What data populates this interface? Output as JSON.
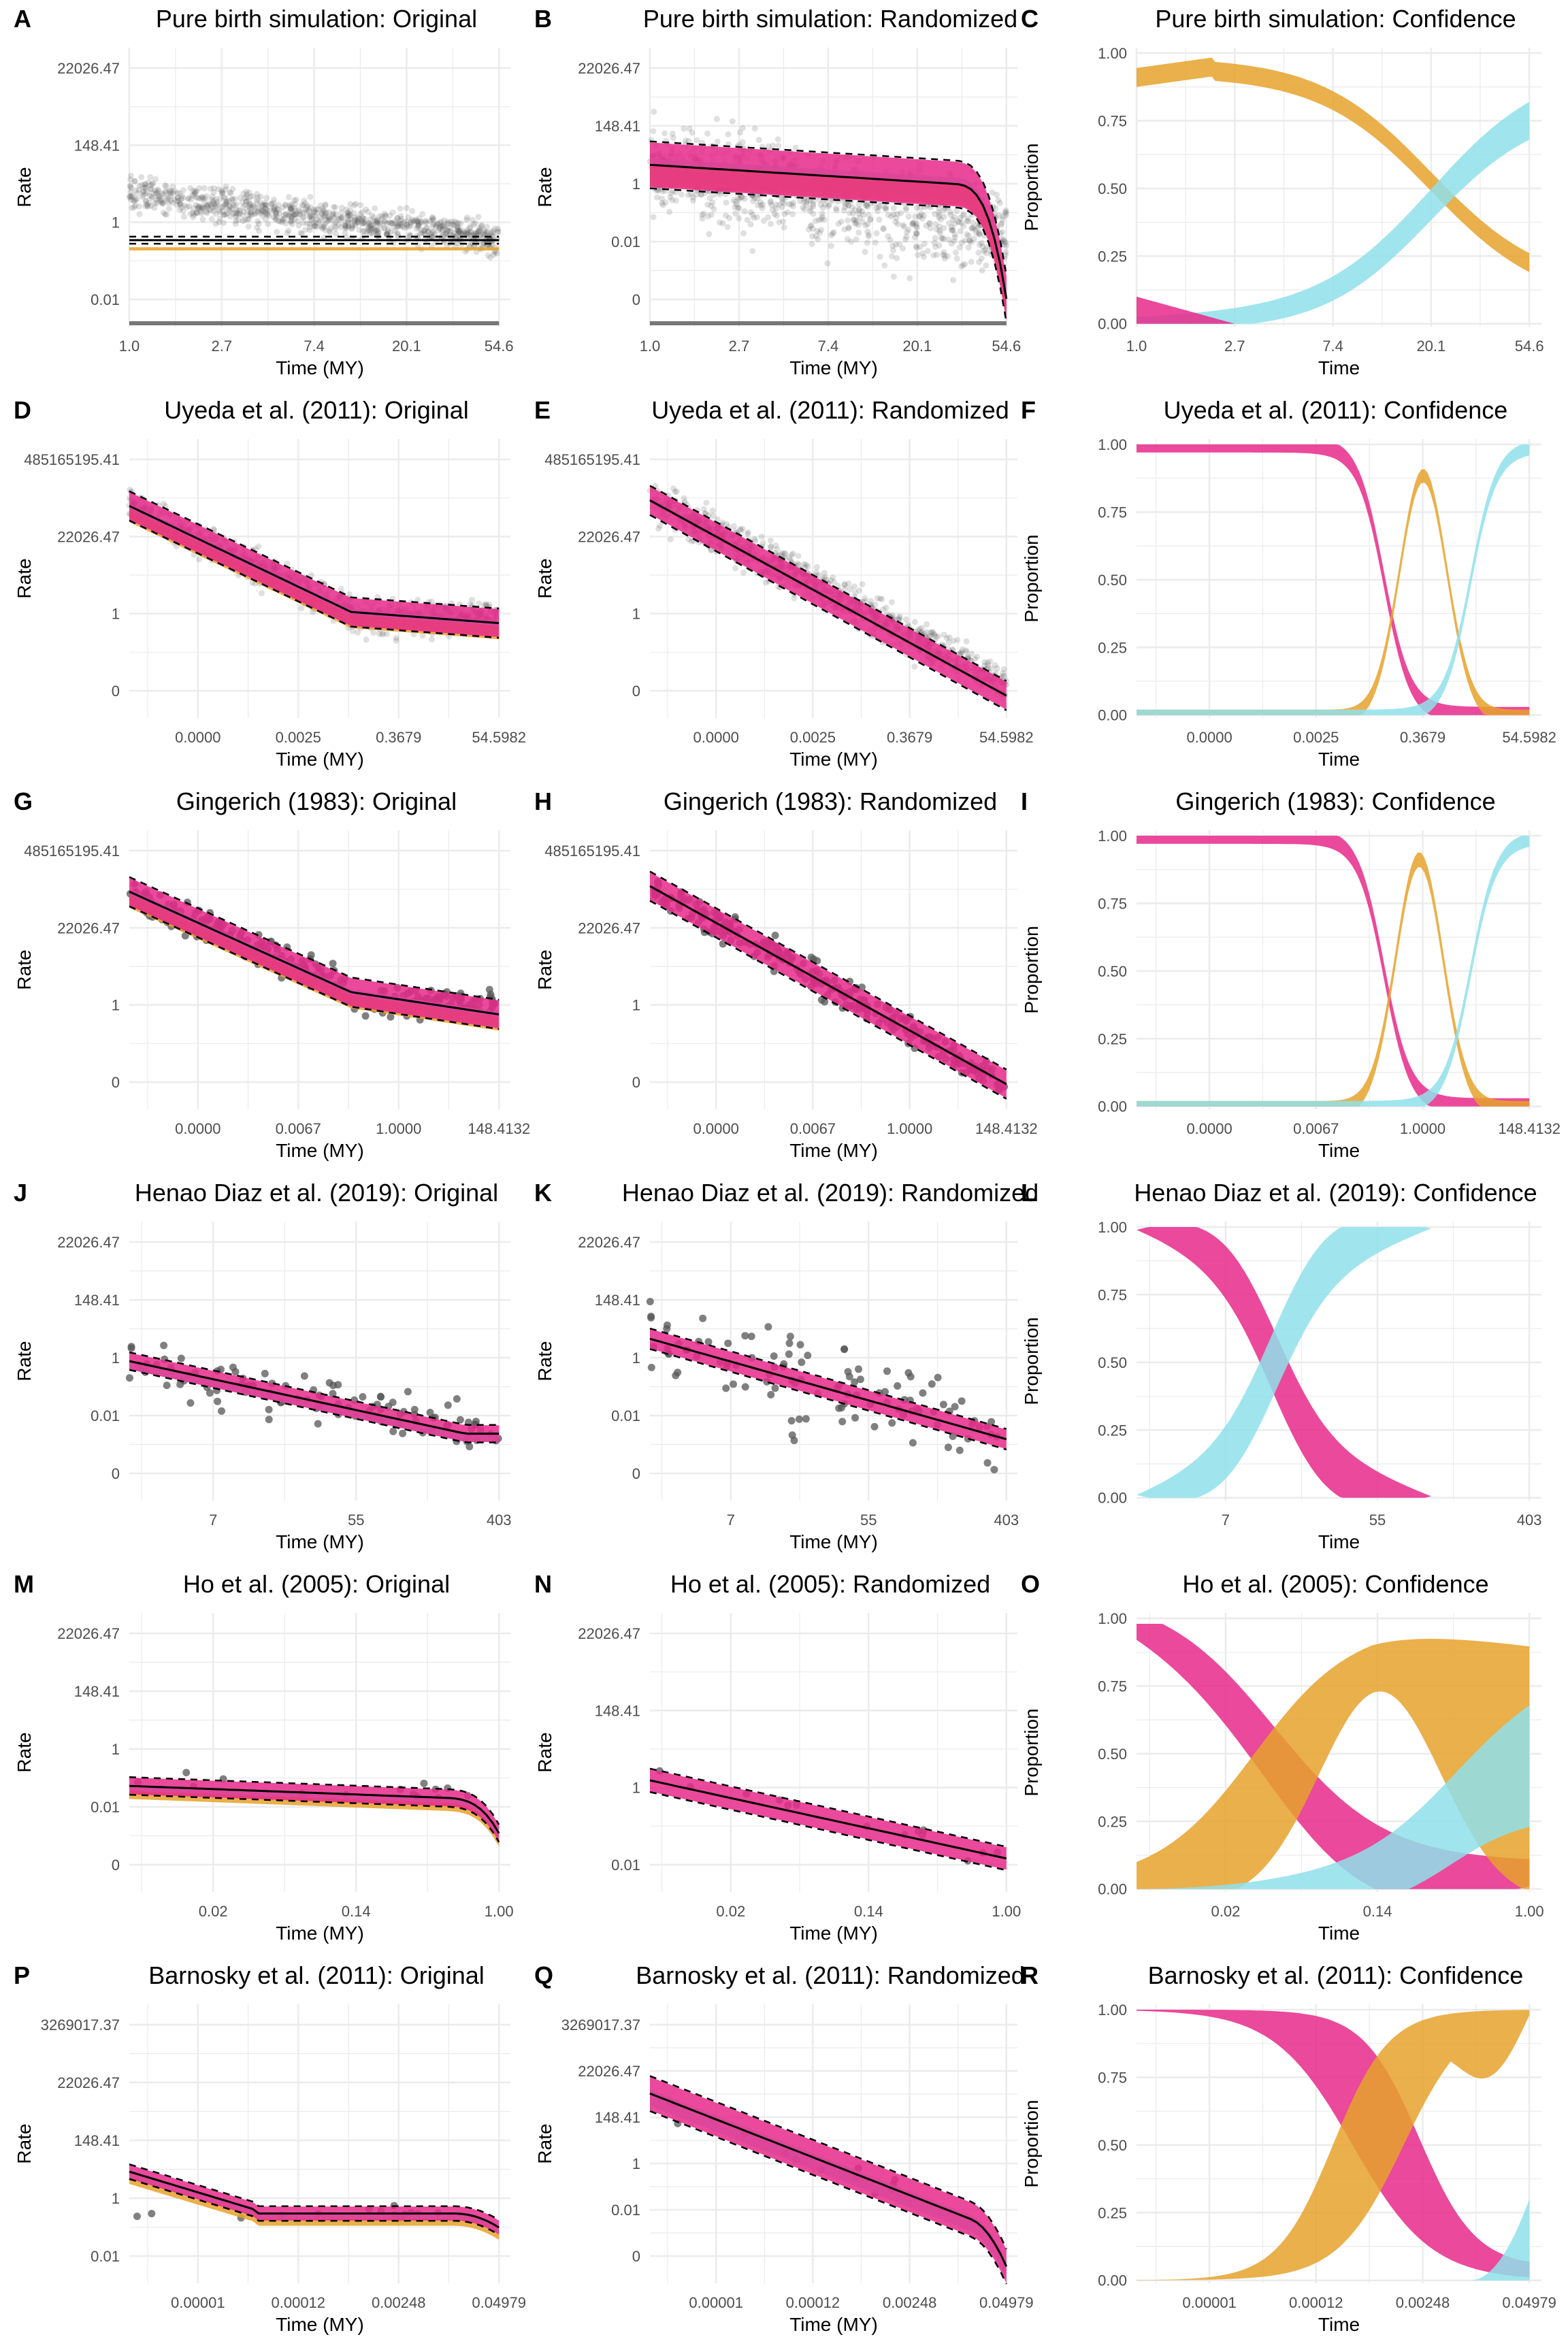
{
  "colors": {
    "pink": "#e7298a",
    "orange": "#e6a22b",
    "cyan": "#8fe0ea",
    "grid": "#ebebeb",
    "points": "#555555",
    "line": "#000000"
  },
  "chart_data": [
    {
      "letter": "A",
      "type": "scatter",
      "title": "Pure birth simulation: Original",
      "xlabel": "Time (MY)",
      "ylabel": "Rate",
      "xticks": [
        "1.0",
        "2.7",
        "7.4",
        "20.1",
        "54.6"
      ],
      "yticks": [
        "22026.47",
        "148.41",
        "1",
        "0.01"
      ],
      "points": "dense",
      "bands": [
        "orange"
      ],
      "rug": true
    },
    {
      "letter": "B",
      "type": "scatter",
      "title": "Pure birth simulation: Randomized",
      "xlabel": "Time (MY)",
      "ylabel": "Rate",
      "xticks": [
        "1.0",
        "2.7",
        "7.4",
        "20.1",
        "54.6"
      ],
      "yticks": [
        "22026.47",
        "148.41",
        "1",
        "0.01",
        "0"
      ],
      "points": "dense",
      "bands": [
        "pink",
        "orange",
        "cyan"
      ],
      "rug": true
    },
    {
      "letter": "C",
      "type": "area",
      "title": "Pure birth simulation: Confidence",
      "xlabel": "Time",
      "ylabel": "Proportion",
      "xticks": [
        "1.0",
        "2.7",
        "7.4",
        "20.1",
        "54.6"
      ],
      "yticks": [
        "1.00",
        "0.75",
        "0.50",
        "0.25",
        "0.00"
      ],
      "ylim": [
        0,
        1
      ],
      "series": [
        {
          "color": "orange",
          "curve": "decreasing"
        },
        {
          "color": "cyan",
          "curve": "increasing"
        },
        {
          "color": "pink",
          "curve": "small"
        }
      ]
    },
    {
      "letter": "D",
      "type": "scatter",
      "title": "Uyeda et al. (2011): Original",
      "xlabel": "Time (MY)",
      "ylabel": "Rate",
      "xticks": [
        "0.0000",
        "0.0025",
        "0.3679",
        "54.5982"
      ],
      "yticks": [
        "485165195.41",
        "22026.47",
        "1",
        "0"
      ],
      "points": "dense",
      "bands": [
        "pink",
        "orange",
        "cyan"
      ]
    },
    {
      "letter": "E",
      "type": "scatter",
      "title": "Uyeda et al. (2011): Randomized",
      "xlabel": "Time (MY)",
      "ylabel": "Rate",
      "xticks": [
        "0.0000",
        "0.0025",
        "0.3679",
        "54.5982"
      ],
      "yticks": [
        "485165195.41",
        "22026.47",
        "1",
        "0"
      ],
      "points": "dense",
      "bands": [
        "pink"
      ]
    },
    {
      "letter": "F",
      "type": "area",
      "title": "Uyeda et al. (2011): Confidence",
      "xlabel": "Time",
      "ylabel": "Proportion",
      "xticks": [
        "0.0000",
        "0.0025",
        "0.3679",
        "54.5982"
      ],
      "yticks": [
        "1.00",
        "0.75",
        "0.50",
        "0.25",
        "0.00"
      ],
      "ylim": [
        0,
        1
      ],
      "series": [
        {
          "color": "pink",
          "curve": "drop-late"
        },
        {
          "color": "orange",
          "curve": "peak-0.89"
        },
        {
          "color": "cyan",
          "curve": "rise-end"
        }
      ]
    },
    {
      "letter": "G",
      "type": "scatter",
      "title": "Gingerich (1983): Original",
      "xlabel": "Time (MY)",
      "ylabel": "Rate",
      "xticks": [
        "0.0000",
        "0.0067",
        "1.0000",
        "148.4132"
      ],
      "yticks": [
        "485165195.41",
        "22026.47",
        "1",
        "0"
      ],
      "points": "medium",
      "bands": [
        "pink",
        "orange",
        "cyan"
      ]
    },
    {
      "letter": "H",
      "type": "scatter",
      "title": "Gingerich (1983): Randomized",
      "xlabel": "Time (MY)",
      "ylabel": "Rate",
      "xticks": [
        "0.0000",
        "0.0067",
        "1.0000",
        "148.4132"
      ],
      "yticks": [
        "485165195.41",
        "22026.47",
        "1",
        "0"
      ],
      "points": "medium",
      "bands": [
        "pink"
      ]
    },
    {
      "letter": "I",
      "type": "area",
      "title": "Gingerich (1983): Confidence",
      "xlabel": "Time",
      "ylabel": "Proportion",
      "xticks": [
        "0.0000",
        "0.0067",
        "1.0000",
        "148.4132"
      ],
      "yticks": [
        "1.00",
        "0.75",
        "0.50",
        "0.25",
        "0.00"
      ],
      "ylim": [
        0,
        1
      ],
      "series": [
        {
          "color": "pink",
          "curve": "drop-late"
        },
        {
          "color": "orange",
          "curve": "peak-0.92"
        },
        {
          "color": "cyan",
          "curve": "rise-end"
        }
      ]
    },
    {
      "letter": "J",
      "type": "scatter",
      "title": "Henao Diaz et al. (2019): Original",
      "xlabel": "Time (MY)",
      "ylabel": "Rate",
      "xticks": [
        "7",
        "55",
        "403"
      ],
      "yticks": [
        "22026.47",
        "148.41",
        "1",
        "0.01",
        "0"
      ],
      "points": "sparse",
      "bands": [
        "pink",
        "cyan"
      ]
    },
    {
      "letter": "K",
      "type": "scatter",
      "title": "Henao Diaz et al. (2019): Randomized",
      "xlabel": "Time (MY)",
      "ylabel": "Rate",
      "xticks": [
        "7",
        "55",
        "403"
      ],
      "yticks": [
        "22026.47",
        "148.41",
        "1",
        "0.01",
        "0"
      ],
      "points": "sparse",
      "bands": [
        "pink"
      ]
    },
    {
      "letter": "L",
      "type": "area",
      "title": "Henao Diaz et al. (2019): Confidence",
      "xlabel": "Time",
      "ylabel": "Proportion",
      "xticks": [
        "7",
        "55",
        "403"
      ],
      "yticks": [
        "1.00",
        "0.75",
        "0.50",
        "0.25",
        "0.00"
      ],
      "ylim": [
        0,
        1
      ],
      "series": [
        {
          "color": "pink",
          "curve": "drop-mid"
        },
        {
          "color": "cyan",
          "curve": "rise-mid"
        }
      ]
    },
    {
      "letter": "M",
      "type": "scatter",
      "title": "Ho et al. (2005): Original",
      "xlabel": "Time (MY)",
      "ylabel": "Rate",
      "xticks": [
        "0.02",
        "0.14",
        "1.00"
      ],
      "yticks": [
        "22026.47",
        "148.41",
        "1",
        "0.01",
        "0"
      ],
      "points": "few",
      "bands": [
        "pink",
        "orange",
        "cyan"
      ]
    },
    {
      "letter": "N",
      "type": "scatter",
      "title": "Ho et al. (2005): Randomized",
      "xlabel": "Time (MY)",
      "ylabel": "Rate",
      "xticks": [
        "0.02",
        "0.14",
        "1.00"
      ],
      "yticks": [
        "22026.47",
        "148.41",
        "1",
        "0.01"
      ],
      "points": "few",
      "bands": [
        "pink"
      ]
    },
    {
      "letter": "O",
      "type": "area",
      "title": "Ho et al. (2005): Confidence",
      "xlabel": "Time",
      "ylabel": "Proportion",
      "xticks": [
        "0.02",
        "0.14",
        "1.00"
      ],
      "yticks": [
        "1.00",
        "0.75",
        "0.50",
        "0.25",
        "0.00"
      ],
      "ylim": [
        0,
        1
      ],
      "series": [
        {
          "color": "pink",
          "curve": "wide-drop"
        },
        {
          "color": "orange",
          "curve": "wide-peak"
        },
        {
          "color": "cyan",
          "curve": "wide-rise"
        }
      ]
    },
    {
      "letter": "P",
      "type": "scatter",
      "title": "Barnosky et al. (2011): Original",
      "xlabel": "Time (MY)",
      "ylabel": "Rate",
      "xticks": [
        "0.00001",
        "0.00012",
        "0.00248",
        "0.04979"
      ],
      "yticks": [
        "3269017.37",
        "22026.47",
        "148.41",
        "1",
        "0.01"
      ],
      "points": "few",
      "bands": [
        "pink",
        "orange",
        "cyan"
      ]
    },
    {
      "letter": "Q",
      "type": "scatter",
      "title": "Barnosky et al. (2011): Randomized",
      "xlabel": "Time (MY)",
      "ylabel": "Rate",
      "xticks": [
        "0.00001",
        "0.00012",
        "0.00248",
        "0.04979"
      ],
      "yticks": [
        "3269017.37",
        "22026.47",
        "148.41",
        "1",
        "0.01",
        "0"
      ],
      "points": "few",
      "bands": [
        "pink",
        "cyan"
      ]
    },
    {
      "letter": "R",
      "type": "area",
      "title": "Barnosky et al. (2011): Confidence",
      "xlabel": "Time",
      "ylabel": "Proportion",
      "xticks": [
        "0.00001",
        "0.00012",
        "0.00248",
        "0.04979"
      ],
      "yticks": [
        "1.00",
        "0.75",
        "0.50",
        "0.25",
        "0.00"
      ],
      "ylim": [
        0,
        1
      ],
      "series": [
        {
          "color": "pink",
          "curve": "drop-wide-late"
        },
        {
          "color": "orange",
          "curve": "rise-late"
        },
        {
          "color": "cyan",
          "curve": "rise-end-small"
        }
      ]
    }
  ]
}
